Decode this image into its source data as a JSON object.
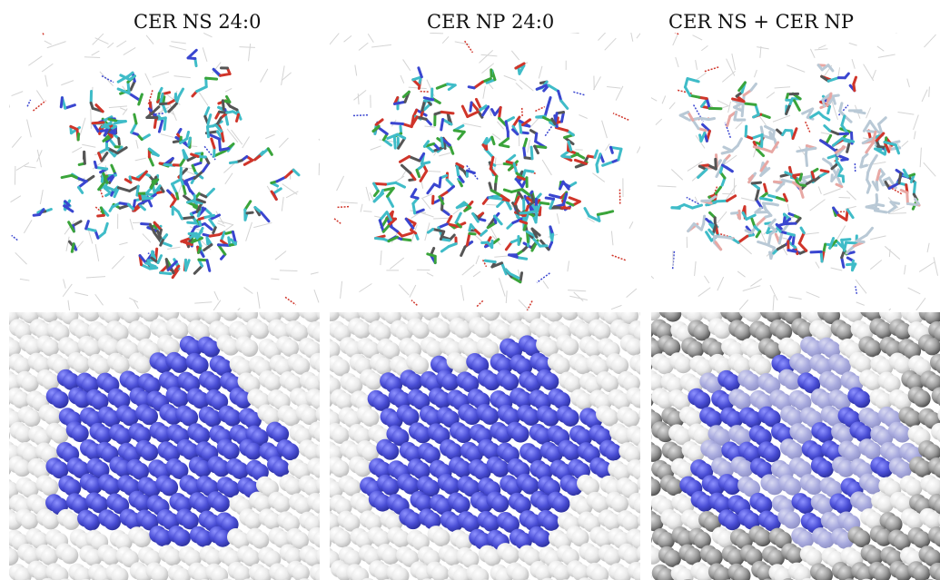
{
  "figure": {
    "columns": [
      {
        "title": "CER NS 24:0",
        "mix": false
      },
      {
        "title": "CER NP 24:0",
        "mix": false
      },
      {
        "title": "CER NS + CER NP",
        "mix": true
      }
    ],
    "rows": [
      "stick-representation",
      "sphere-representation"
    ],
    "colors": {
      "background": "#ffffff",
      "carbon_cyan": "#3fbcc8",
      "oxygen_red": "#d0352a",
      "nitrogen_blue": "#3a46d0",
      "hydroxyl_green": "#3aa43a",
      "head_blue": "#4a4ed6",
      "head_blue_faded": "#a8aade",
      "white_sphere": "#e9e9e9",
      "grey_sphere": "#9a9a9a"
    }
  }
}
